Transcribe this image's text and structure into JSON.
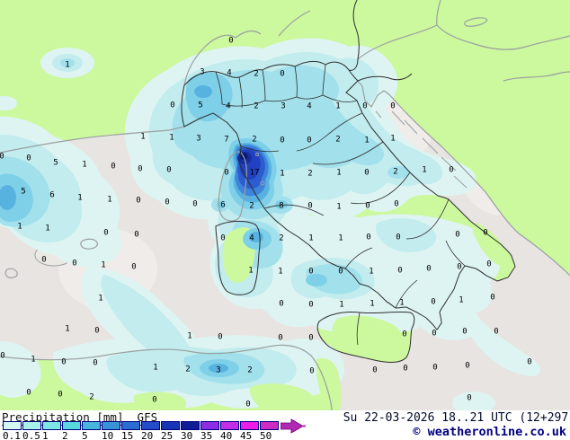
{
  "legend": {
    "title": "Precipitation",
    "units": "[mm]",
    "model": "GFS",
    "scale": [
      {
        "label": "0.1",
        "color": "#d4f8f0"
      },
      {
        "label": "0.5",
        "color": "#aaf0ea"
      },
      {
        "label": "1",
        "color": "#7fe7e3"
      },
      {
        "label": "2",
        "color": "#58d8dc"
      },
      {
        "label": "5",
        "color": "#48b6dc"
      },
      {
        "label": "10",
        "color": "#3892d8"
      },
      {
        "label": "15",
        "color": "#2a6cd0"
      },
      {
        "label": "20",
        "color": "#224cc8"
      },
      {
        "label": "25",
        "color": "#1834b4"
      },
      {
        "label": "30",
        "color": "#101c94"
      },
      {
        "label": "35",
        "color": "#8c2ce4"
      },
      {
        "label": "40",
        "color": "#c22ee8"
      },
      {
        "label": "45",
        "color": "#ee1ce8"
      },
      {
        "label": "50",
        "color": "#cc2cc2"
      }
    ],
    "arrow_color": "#b02ab4",
    "scale_border_color": "#000080"
  },
  "footer": {
    "datetime": "Su 22-03-2026 18..21 UTC (12+297)",
    "copyright": "© weatheronline.co.uk"
  },
  "map": {
    "colors": {
      "sea": "#e7e4e1",
      "sea_light": "#efecea",
      "land": "#ccf89e",
      "island_grey": "#ebe9e4",
      "coast_grey": "#9aa0a0",
      "border_dark": "#2e2e2e",
      "label": "#000000",
      "levels": [
        "#def4f2",
        "#c2ecee",
        "#a2e0ec",
        "#7ecfe8",
        "#58b2e0",
        "#3e84da",
        "#2c5cd0",
        "#2142c0",
        "#152e9e",
        "#091878"
      ]
    },
    "values": [
      [
        257,
        44,
        "0"
      ],
      [
        75,
        71,
        "1"
      ],
      [
        225,
        79,
        "3"
      ],
      [
        255,
        80,
        "4"
      ],
      [
        285,
        81,
        "2"
      ],
      [
        314,
        81,
        "0"
      ],
      [
        192,
        116,
        "0"
      ],
      [
        223,
        116,
        "5"
      ],
      [
        254,
        117,
        "4"
      ],
      [
        285,
        117,
        "2"
      ],
      [
        315,
        117,
        "3"
      ],
      [
        344,
        117,
        "4"
      ],
      [
        376,
        117,
        "1"
      ],
      [
        406,
        117,
        "0"
      ],
      [
        437,
        117,
        "0"
      ],
      [
        159,
        151,
        "1"
      ],
      [
        191,
        152,
        "1"
      ],
      [
        221,
        153,
        "3"
      ],
      [
        252,
        154,
        "7"
      ],
      [
        283,
        154,
        "2"
      ],
      [
        314,
        155,
        "0"
      ],
      [
        344,
        155,
        "0"
      ],
      [
        376,
        154,
        "2"
      ],
      [
        408,
        155,
        "1"
      ],
      [
        437,
        153,
        "1"
      ],
      [
        2,
        173,
        "0"
      ],
      [
        32,
        175,
        "0"
      ],
      [
        62,
        180,
        "5"
      ],
      [
        94,
        182,
        "1"
      ],
      [
        126,
        184,
        "0"
      ],
      [
        156,
        187,
        "0"
      ],
      [
        188,
        188,
        "0"
      ],
      [
        252,
        191,
        "0"
      ],
      [
        283,
        191,
        "17"
      ],
      [
        314,
        192,
        "1"
      ],
      [
        345,
        192,
        "2"
      ],
      [
        377,
        191,
        "1"
      ],
      [
        408,
        191,
        "0"
      ],
      [
        440,
        190,
        "2"
      ],
      [
        472,
        188,
        "1"
      ],
      [
        502,
        188,
        "0"
      ],
      [
        26,
        212,
        "5"
      ],
      [
        58,
        216,
        "6"
      ],
      [
        89,
        219,
        "1"
      ],
      [
        122,
        221,
        "1"
      ],
      [
        154,
        222,
        "0"
      ],
      [
        186,
        224,
        "0"
      ],
      [
        217,
        226,
        "0"
      ],
      [
        248,
        227,
        "6"
      ],
      [
        280,
        228,
        "2"
      ],
      [
        313,
        228,
        "8"
      ],
      [
        345,
        228,
        "0"
      ],
      [
        377,
        229,
        "1"
      ],
      [
        409,
        228,
        "0"
      ],
      [
        441,
        226,
        "0"
      ],
      [
        22,
        251,
        "1"
      ],
      [
        53,
        253,
        "1"
      ],
      [
        118,
        258,
        "0"
      ],
      [
        152,
        260,
        "0"
      ],
      [
        248,
        264,
        "0"
      ],
      [
        280,
        264,
        "4"
      ],
      [
        313,
        264,
        "2"
      ],
      [
        346,
        264,
        "1"
      ],
      [
        379,
        264,
        "1"
      ],
      [
        410,
        263,
        "0"
      ],
      [
        443,
        263,
        "0"
      ],
      [
        509,
        260,
        "0"
      ],
      [
        540,
        258,
        "0"
      ],
      [
        49,
        288,
        "0"
      ],
      [
        83,
        292,
        "0"
      ],
      [
        115,
        294,
        "1"
      ],
      [
        149,
        296,
        "0"
      ],
      [
        279,
        300,
        "1"
      ],
      [
        312,
        301,
        "1"
      ],
      [
        346,
        301,
        "0"
      ],
      [
        379,
        301,
        "0"
      ],
      [
        413,
        301,
        "1"
      ],
      [
        445,
        300,
        "0"
      ],
      [
        477,
        298,
        "0"
      ],
      [
        511,
        296,
        "0"
      ],
      [
        544,
        293,
        "0"
      ],
      [
        112,
        331,
        "1"
      ],
      [
        313,
        337,
        "0"
      ],
      [
        346,
        338,
        "0"
      ],
      [
        380,
        338,
        "1"
      ],
      [
        414,
        337,
        "1"
      ],
      [
        447,
        336,
        "1"
      ],
      [
        482,
        335,
        "0"
      ],
      [
        513,
        333,
        "1"
      ],
      [
        548,
        330,
        "0"
      ],
      [
        75,
        365,
        "1"
      ],
      [
        108,
        367,
        "0"
      ],
      [
        211,
        373,
        "1"
      ],
      [
        245,
        374,
        "0"
      ],
      [
        312,
        375,
        "0"
      ],
      [
        346,
        375,
        "0"
      ],
      [
        450,
        371,
        "0"
      ],
      [
        483,
        370,
        "0"
      ],
      [
        517,
        368,
        "0"
      ],
      [
        552,
        368,
        "0"
      ],
      [
        3,
        395,
        "0"
      ],
      [
        37,
        399,
        "1"
      ],
      [
        71,
        402,
        "0"
      ],
      [
        106,
        403,
        "0"
      ],
      [
        173,
        408,
        "1"
      ],
      [
        209,
        410,
        "2"
      ],
      [
        243,
        411,
        "3"
      ],
      [
        278,
        411,
        "2"
      ],
      [
        347,
        412,
        "0"
      ],
      [
        417,
        411,
        "0"
      ],
      [
        451,
        409,
        "0"
      ],
      [
        484,
        408,
        "0"
      ],
      [
        520,
        406,
        "0"
      ],
      [
        589,
        402,
        "0"
      ],
      [
        32,
        436,
        "0"
      ],
      [
        67,
        438,
        "0"
      ],
      [
        102,
        441,
        "2"
      ],
      [
        172,
        444,
        "0"
      ],
      [
        276,
        449,
        "0"
      ],
      [
        522,
        442,
        "0"
      ]
    ]
  }
}
